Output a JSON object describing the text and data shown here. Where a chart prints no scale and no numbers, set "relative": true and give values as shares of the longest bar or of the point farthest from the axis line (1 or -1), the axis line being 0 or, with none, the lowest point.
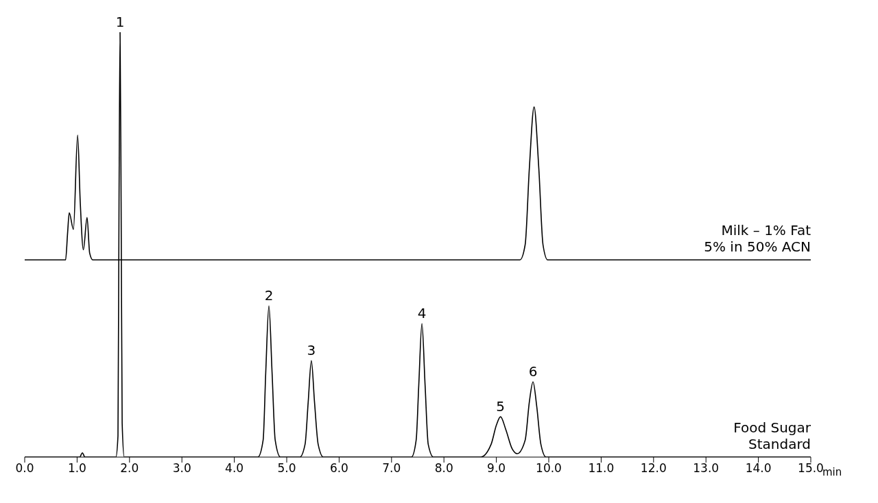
{
  "chart_data": {
    "type": "line",
    "relative": true,
    "xlabel": "min",
    "legend": false,
    "marker": "none",
    "line_style": "solid",
    "grid": false,
    "xlim": [
      0,
      15
    ],
    "xticks": [
      {
        "value": 0,
        "label": "0.0"
      },
      {
        "value": 1,
        "label": "1.0"
      },
      {
        "value": 2,
        "label": "2.0"
      },
      {
        "value": 3,
        "label": "3.0"
      },
      {
        "value": 4,
        "label": "4.0"
      },
      {
        "value": 5,
        "label": "5.0"
      },
      {
        "value": 6,
        "label": "6.0"
      },
      {
        "value": 7,
        "label": "7.0"
      },
      {
        "value": 8,
        "label": "8.0"
      },
      {
        "value": 9,
        "label": "9.0"
      },
      {
        "value": 10,
        "label": "10.0"
      },
      {
        "value": 11,
        "label": "11.0"
      },
      {
        "value": 12,
        "label": "12.0"
      },
      {
        "value": 13,
        "label": "13.0"
      },
      {
        "value": 14,
        "label": "14.0"
      },
      {
        "value": 15,
        "label": "15.0"
      }
    ],
    "series": [
      {
        "name": "Milk – 1% Fat\n5% in 50% ACN",
        "color": "#000000",
        "x": [
          0,
          0.78,
          0.82,
          0.85,
          0.93,
          1.01,
          1.06,
          1.12,
          1.19,
          1.24,
          1.3,
          9.45,
          9.55,
          9.63,
          9.72,
          9.81,
          9.89,
          9.98,
          15
        ],
        "values": [
          0.464,
          0.464,
          0.53,
          0.575,
          0.536,
          0.758,
          0.6,
          0.488,
          0.564,
          0.48,
          0.464,
          0.464,
          0.5,
          0.68,
          0.824,
          0.68,
          0.5,
          0.464,
          0.464
        ]
      },
      {
        "name": "Food Sugar\nStandard",
        "color": "#000000",
        "x": [
          0,
          1.05,
          1.1,
          1.15,
          1.74,
          1.78,
          1.8,
          1.82,
          1.84,
          1.86,
          1.9,
          4.45,
          4.55,
          4.6,
          4.66,
          4.72,
          4.78,
          4.88,
          5.25,
          5.35,
          5.41,
          5.47,
          5.53,
          5.6,
          5.7,
          7.38,
          7.47,
          7.52,
          7.58,
          7.64,
          7.7,
          7.8,
          8.7,
          8.9,
          9.0,
          9.08,
          9.18,
          9.3,
          9.4,
          9.55,
          9.63,
          9.7,
          9.77,
          9.85,
          9.95,
          15
        ],
        "values": [
          0,
          0,
          0.01,
          0,
          0,
          0.05,
          0.6,
          1.0,
          0.6,
          0.08,
          0,
          0,
          0.04,
          0.2,
          0.356,
          0.2,
          0.04,
          0,
          0,
          0.03,
          0.13,
          0.227,
          0.13,
          0.03,
          0,
          0,
          0.04,
          0.17,
          0.314,
          0.17,
          0.03,
          0,
          0,
          0.03,
          0.075,
          0.095,
          0.065,
          0.02,
          0.008,
          0.04,
          0.13,
          0.177,
          0.12,
          0.03,
          0,
          0
        ]
      }
    ],
    "annotations": [
      {
        "text": "1",
        "x": 1.82,
        "y": 1.0
      },
      {
        "text": "2",
        "x": 4.66,
        "y": 0.356
      },
      {
        "text": "3",
        "x": 5.47,
        "y": 0.227
      },
      {
        "text": "4",
        "x": 7.58,
        "y": 0.314
      },
      {
        "text": "5",
        "x": 9.08,
        "y": 0.095
      },
      {
        "text": "6",
        "x": 9.7,
        "y": 0.177
      }
    ]
  }
}
